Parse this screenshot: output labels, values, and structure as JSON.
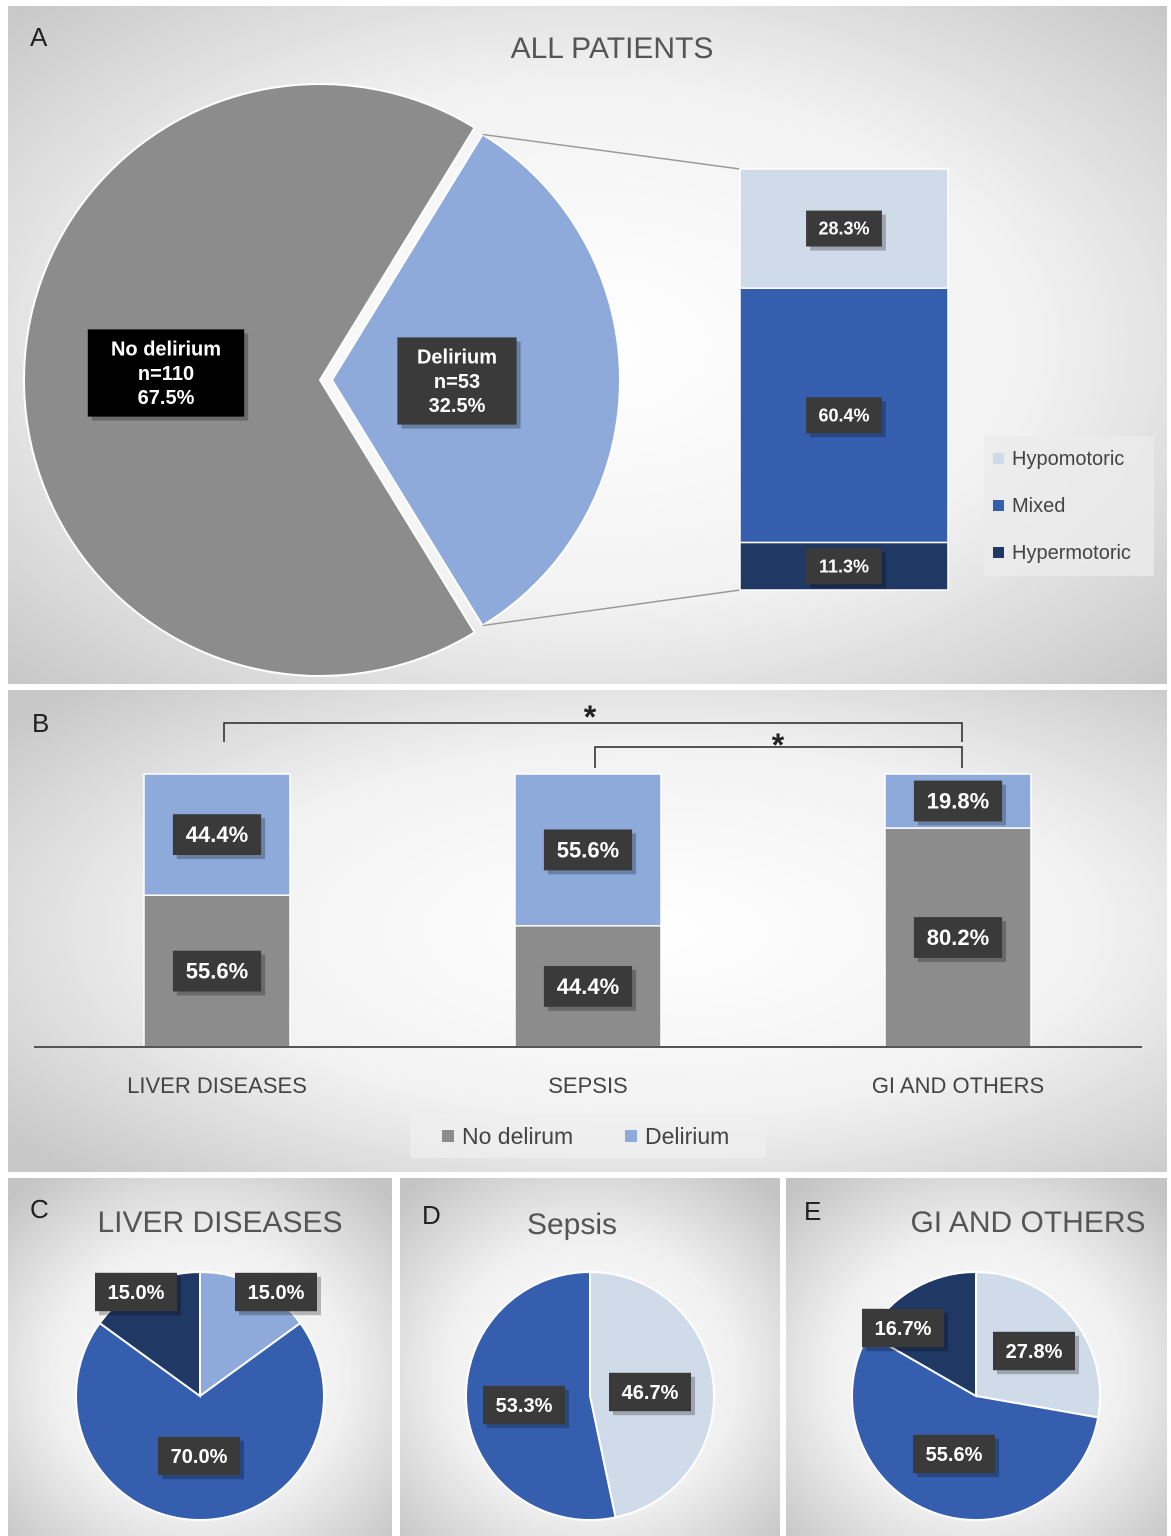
{
  "panels": {
    "A": {
      "letter": "A",
      "title": "ALL PATIENTS"
    },
    "B": {
      "letter": "B",
      "significance_mark": "*"
    },
    "C": {
      "letter": "C",
      "title": "LIVER DISEASES"
    },
    "D": {
      "letter": "D",
      "title": "Sepsis"
    },
    "E": {
      "letter": "E",
      "title": "GI AND OTHERS"
    }
  },
  "colors": {
    "no_delirium": "#8c8c8c",
    "delirium": "#8eaadb",
    "hypomotoric": "#d0dbea",
    "mixed": "#355fae",
    "hypermotoric": "#1f3864",
    "label_box": "#3a3a3a",
    "label_box_black": "#000000"
  },
  "chart_data": [
    {
      "id": "A-pie",
      "type": "pie",
      "title": "ALL PATIENTS",
      "slices": [
        {
          "name": "No delirium",
          "n": "n=110",
          "value": 67.5,
          "label": "67.5%"
        },
        {
          "name": "Delirium",
          "n": "n=53",
          "value": 32.5,
          "label": "32.5%"
        }
      ]
    },
    {
      "id": "A-bar",
      "type": "bar",
      "stacked": true,
      "legend": "right",
      "series": [
        {
          "name": "Hypermotoric",
          "value": 11.3,
          "label": "11.3%"
        },
        {
          "name": "Mixed",
          "value": 60.4,
          "label": "60.4%"
        },
        {
          "name": "Hypomotoric",
          "value": 28.3,
          "label": "28.3%"
        }
      ]
    },
    {
      "id": "B",
      "type": "bar",
      "stacked": true,
      "legend": "bottom",
      "ylim": [
        0,
        100
      ],
      "categories": [
        "LIVER DISEASES",
        "SEPSIS",
        "GI AND OTHERS"
      ],
      "series": [
        {
          "name": "No delirum",
          "values": [
            55.6,
            44.4,
            80.2
          ],
          "labels": [
            "55.6%",
            "44.4%",
            "80.2%"
          ]
        },
        {
          "name": "Delirium",
          "values": [
            44.4,
            55.6,
            19.8
          ],
          "labels": [
            "44.4%",
            "55.6%",
            "19.8%"
          ]
        }
      ]
    },
    {
      "id": "C",
      "type": "pie",
      "title": "LIVER DISEASES",
      "slices": [
        {
          "name": "Delirium",
          "value": 15.0,
          "label": "15.0%"
        },
        {
          "name": "Mixed",
          "value": 70.0,
          "label": "70.0%"
        },
        {
          "name": "Hypermotoric",
          "value": 15.0,
          "label": "15.0%"
        }
      ]
    },
    {
      "id": "D",
      "type": "pie",
      "title": "Sepsis",
      "slices": [
        {
          "name": "Hypomotoric",
          "value": 46.7,
          "label": "46.7%"
        },
        {
          "name": "Mixed",
          "value": 53.3,
          "label": "53.3%"
        }
      ]
    },
    {
      "id": "E",
      "type": "pie",
      "title": "GI AND OTHERS",
      "slices": [
        {
          "name": "Hypomotoric",
          "value": 27.8,
          "label": "27.8%"
        },
        {
          "name": "Mixed",
          "value": 55.6,
          "label": "55.6%"
        },
        {
          "name": "Hypermotoric",
          "value": 16.7,
          "label": "16.7%"
        }
      ]
    }
  ]
}
